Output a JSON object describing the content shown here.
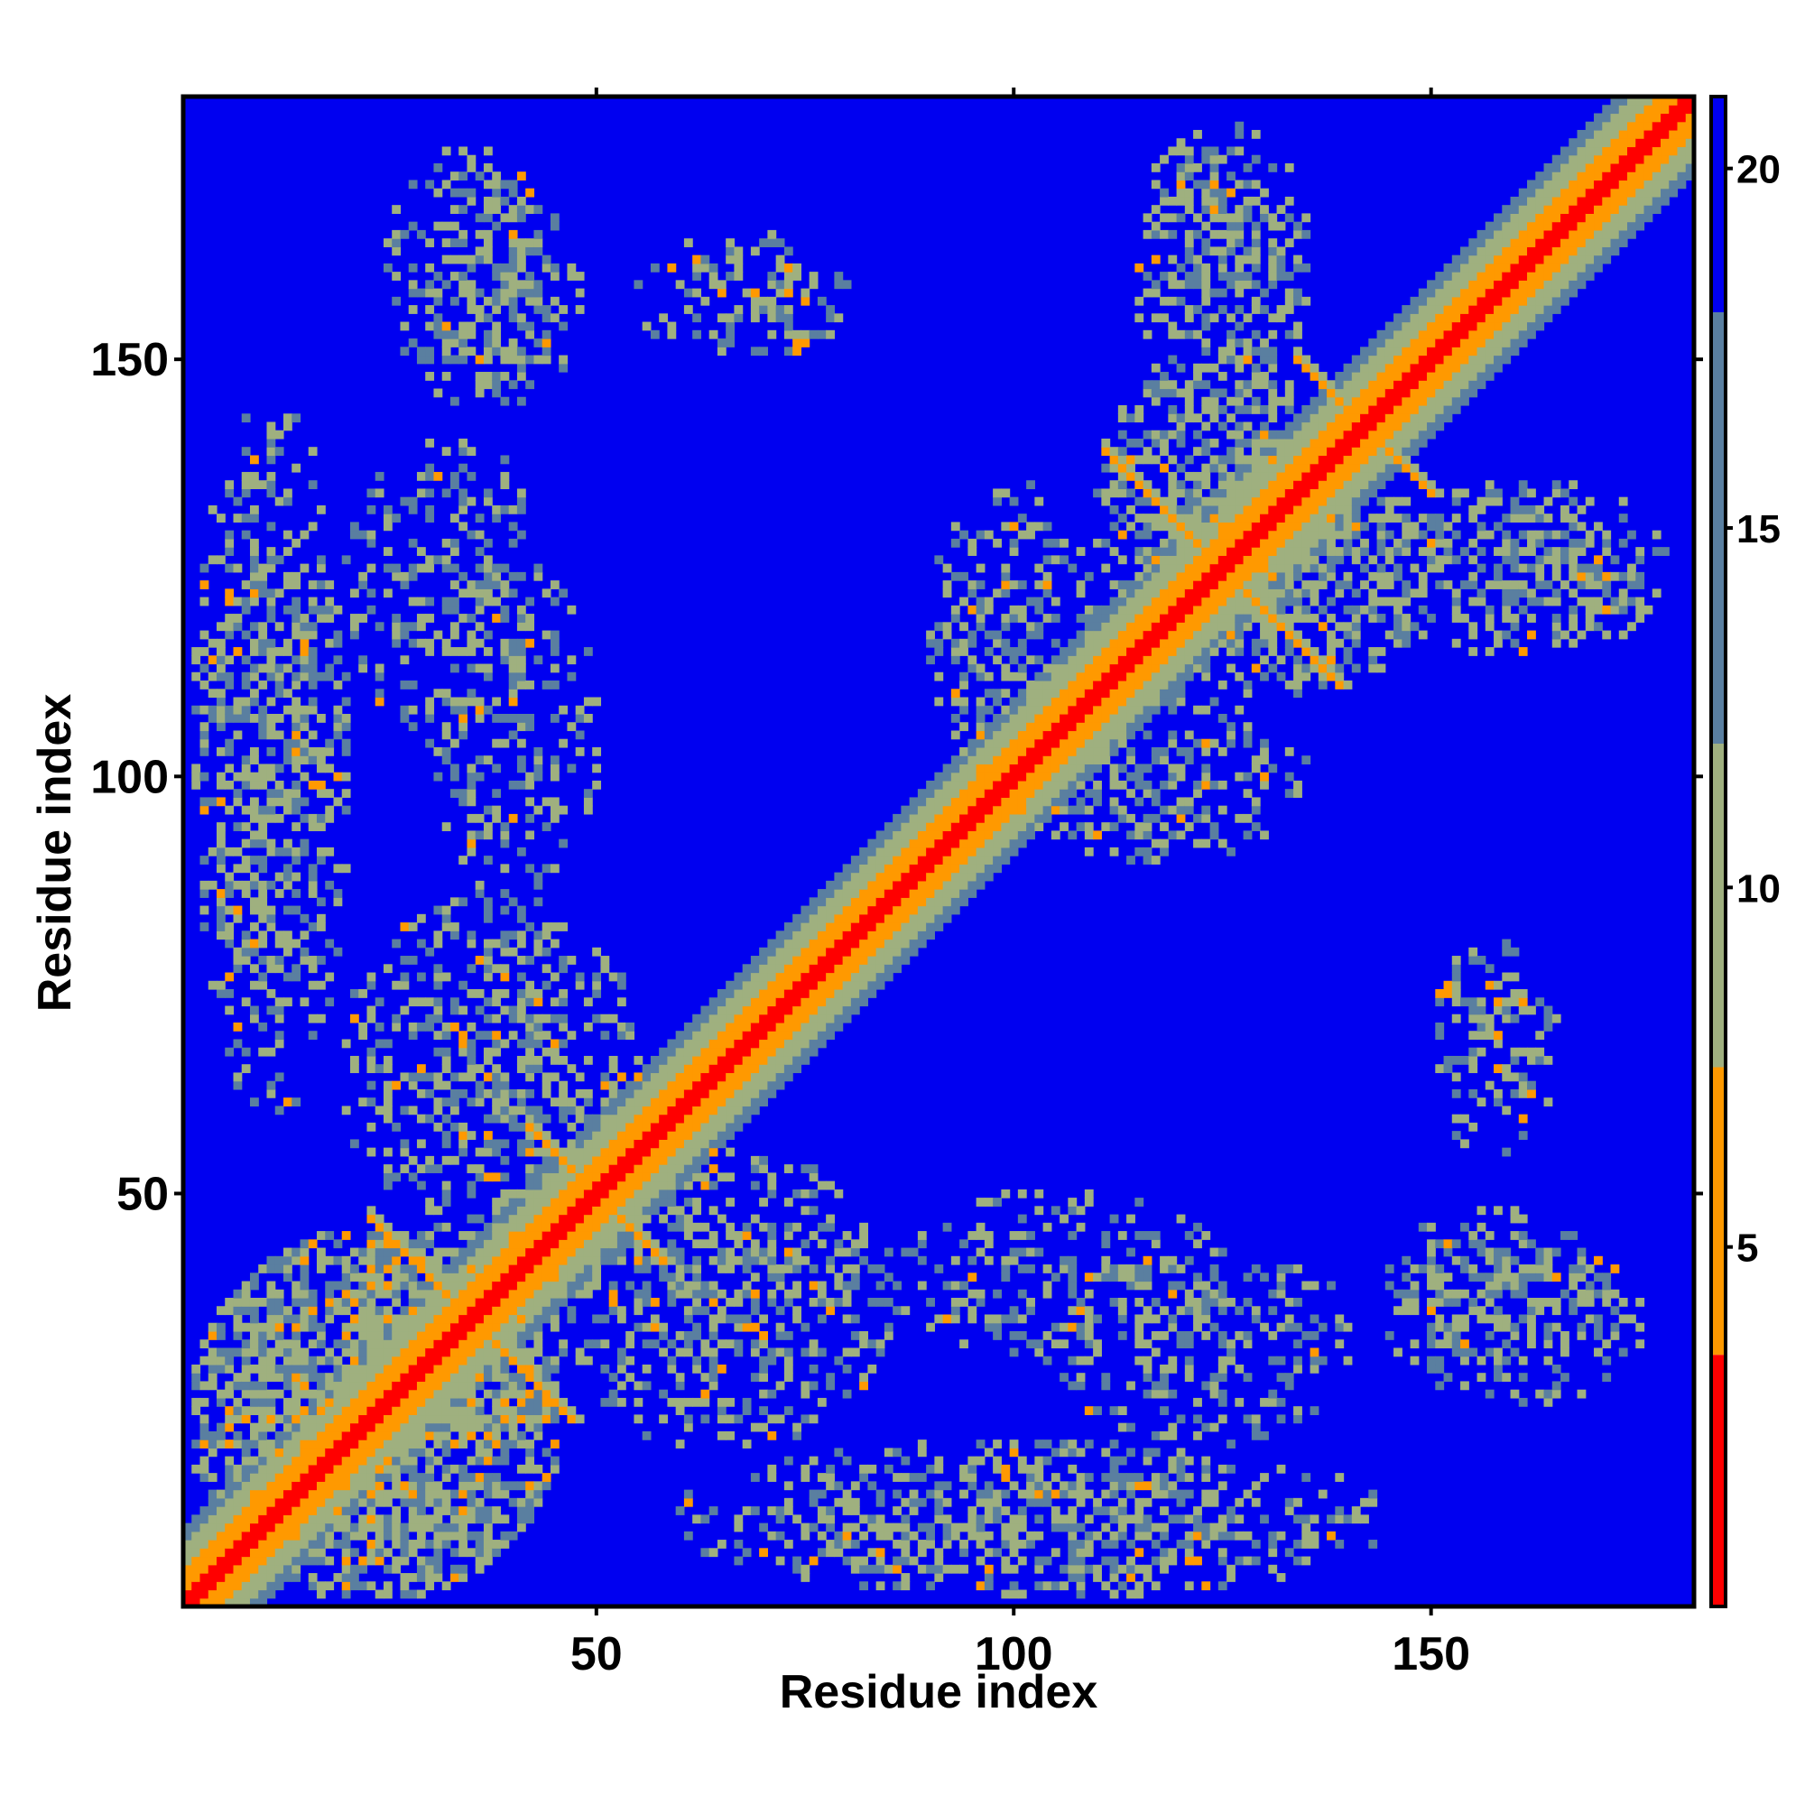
{
  "chart_data": {
    "type": "heatmap",
    "title": "",
    "xlabel": "Residue index",
    "ylabel": "Residue index",
    "n_residues": 181,
    "xlim": [
      1,
      181
    ],
    "ylim": [
      1,
      181
    ],
    "x_ticks": [
      50,
      100,
      150
    ],
    "y_ticks": [
      50,
      100,
      150
    ],
    "x_tick_labels": [
      "50",
      "100",
      "150"
    ],
    "y_tick_labels": [
      "50",
      "100",
      "150"
    ],
    "colorbar": {
      "ticks": [
        5,
        10,
        15,
        20
      ],
      "tick_labels": [
        "5",
        "10",
        "15",
        "20"
      ],
      "range": [
        0,
        21
      ],
      "colors": {
        "contact": "#ff0000",
        "near": "#ff9900",
        "mid": "#9fb07f",
        "far": "#5a7fa0",
        "none": "#0000f0"
      }
    },
    "diagonal_band": {
      "description": "distance increases with |i-j|; red core, orange, green-grey, steel blue halo",
      "profile": [
        [
          0,
          1.0
        ],
        [
          1,
          3.0
        ],
        [
          2,
          4.5
        ],
        [
          3,
          6.0
        ],
        [
          4,
          7.5
        ],
        [
          5,
          9.0
        ],
        [
          6,
          10.5
        ],
        [
          7,
          12.0
        ],
        [
          8,
          14.0
        ],
        [
          9,
          16.0
        ],
        [
          10,
          18.0
        ]
      ]
    },
    "contact_regions": [
      {
        "i": [
          2,
          45
        ],
        "j": [
          2,
          45
        ],
        "strength": 0.75
      },
      {
        "i": [
          20,
          55
        ],
        "j": [
          45,
          85
        ],
        "strength": 0.6
      },
      {
        "i": [
          2,
          20
        ],
        "j": [
          60,
          145
        ],
        "strength": 0.45
      },
      {
        "i": [
          25,
          45
        ],
        "j": [
          145,
          175
        ],
        "strength": 0.5
      },
      {
        "i": [
          30,
          50
        ],
        "j": [
          85,
          125
        ],
        "strength": 0.4
      },
      {
        "i": [
          55,
          80
        ],
        "j": [
          150,
          165
        ],
        "strength": 0.35
      },
      {
        "i": [
          90,
          110
        ],
        "j": [
          100,
          135
        ],
        "strength": 0.55
      },
      {
        "i": [
          110,
          140
        ],
        "j": [
          115,
          150
        ],
        "strength": 0.65
      },
      {
        "i": [
          115,
          135
        ],
        "j": [
          150,
          178
        ],
        "strength": 0.45
      },
      {
        "i": [
          140,
          175
        ],
        "j": [
          115,
          135
        ],
        "strength": 0.4
      },
      {
        "i": [
          145,
          170
        ],
        "j": [
          30,
          48
        ],
        "strength": 0.45
      },
      {
        "i": [
          105,
          140
        ],
        "j": [
          20,
          45
        ],
        "strength": 0.4
      },
      {
        "i": [
          75,
          135
        ],
        "j": [
          2,
          20
        ],
        "strength": 0.35
      },
      {
        "i": [
          150,
          165
        ],
        "j": [
          60,
          80
        ],
        "strength": 0.3
      }
    ],
    "anti_diagonal_strands": [
      {
        "center": [
          35,
          35
        ],
        "half_length": 12,
        "strength": 0.9
      },
      {
        "center": [
          50,
          50
        ],
        "half_length": 8,
        "strength": 0.85
      },
      {
        "center": [
          125,
          125
        ],
        "half_length": 14,
        "strength": 0.9
      },
      {
        "center": [
          142,
          142
        ],
        "half_length": 8,
        "strength": 0.8
      }
    ]
  }
}
